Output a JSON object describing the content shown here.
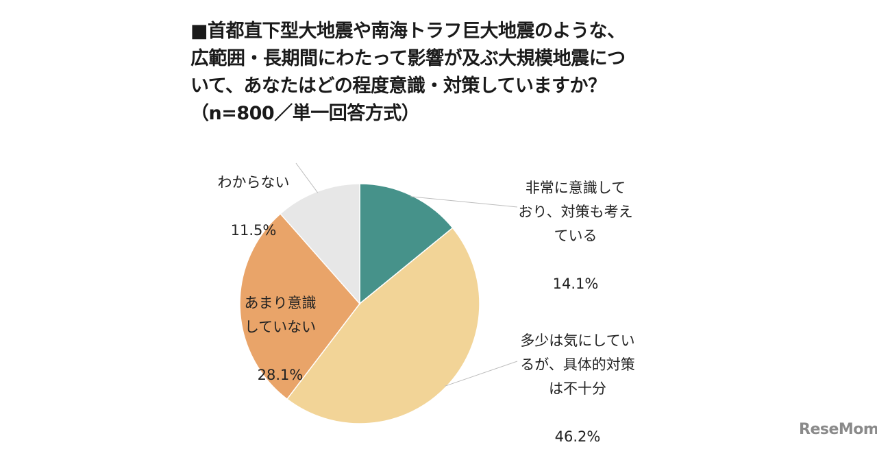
{
  "chart_data": {
    "type": "pie",
    "title": "■首都直下型大地震や南海トラフ巨大地震のような、\n広範囲・長期間にわたって影響が及ぶ大規模地震につ\nいて、あなたはどの程度意識・対策していますか？\n（n=800／単一回答方式）",
    "slices": [
      {
        "label": "非常に意識して\nおり、対策も考え\nている",
        "value": 14.1,
        "value_label": "14.1%",
        "color": "#46928A"
      },
      {
        "label": "多少は気にしてい\nるが、具体的対策\nは不十分",
        "value": 46.2,
        "value_label": "46.2%",
        "color": "#F2D497"
      },
      {
        "label": "あまり意識\nしていない",
        "value": 28.1,
        "value_label": "28.1%",
        "color": "#E9A469"
      },
      {
        "label": "わからない",
        "value": 11.5,
        "value_label": "11.5%",
        "color": "#E7E7E7"
      }
    ],
    "start_angle": "12 o'clock",
    "direction": "clockwise"
  },
  "logo": "ReseMom"
}
